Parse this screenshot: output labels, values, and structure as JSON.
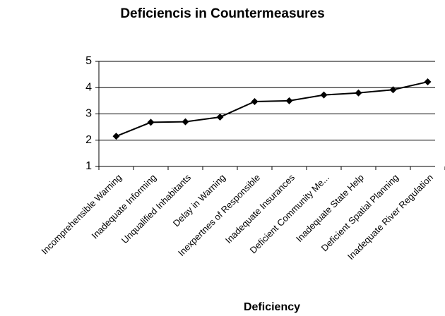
{
  "chart_data": {
    "type": "line",
    "title": "Deficiencis in Countermeasures",
    "x_label": "Deficiency",
    "categories": [
      "Incomprehensible Warning",
      "Inadequate Informing",
      "Unqualified Inhabitants",
      "Delay in Warning",
      "Inexpertnes of Responsible",
      "Inadequate Insurances",
      "Deficient Community Me...",
      "Inadequate State Help",
      "Deficient Spatial Planning",
      "Inadequate River Regulation"
    ],
    "values": [
      2.15,
      2.68,
      2.7,
      2.88,
      3.47,
      3.5,
      3.72,
      3.8,
      3.92,
      4.22
    ],
    "color": "#000000",
    "ylim": [
      1,
      5
    ],
    "yticks": [
      1,
      2,
      3,
      4,
      5
    ],
    "grid": true
  }
}
